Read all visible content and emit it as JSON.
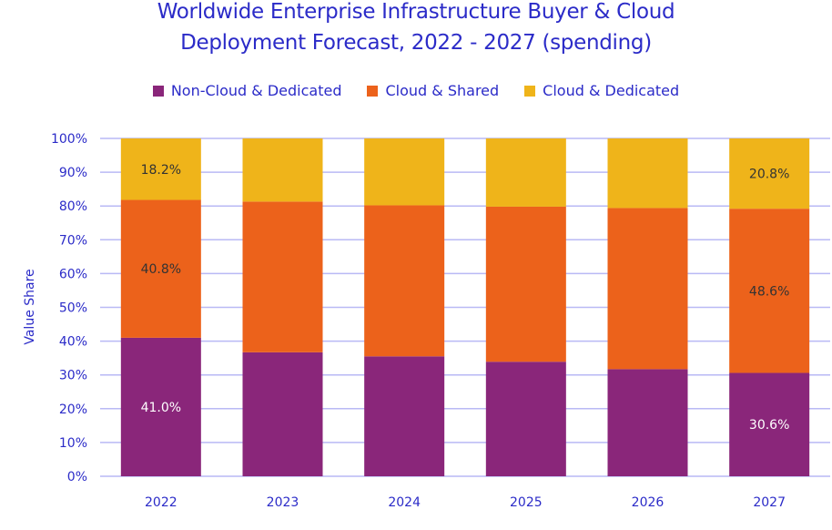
{
  "chart_data": {
    "type": "bar",
    "stacked": true,
    "title_line1": "Worldwide Enterprise Infrastructure Buyer & Cloud",
    "title_line2": "Deployment Forecast, 2022 - 2027 (spending)",
    "ylabel": "Value  Share",
    "xlabel": "",
    "ylim": [
      0,
      100
    ],
    "y_ticks": [
      "0%",
      "10%",
      "20%",
      "30%",
      "40%",
      "50%",
      "60%",
      "70%",
      "80%",
      "90%",
      "100%"
    ],
    "categories": [
      "2022",
      "2023",
      "2024",
      "2025",
      "2026",
      "2027"
    ],
    "grid": true,
    "legend_position": "top",
    "series": [
      {
        "name": "Non-Cloud & Dedicated",
        "color": "#8a267a",
        "values": [
          41.0,
          36.7,
          35.5,
          33.9,
          31.7,
          30.6
        ]
      },
      {
        "name": "Cloud & Shared",
        "color": "#ec621b",
        "values": [
          40.8,
          44.6,
          44.7,
          45.9,
          47.7,
          48.6
        ]
      },
      {
        "name": "Cloud & Dedicated",
        "color": "#efb41a",
        "values": [
          18.2,
          18.7,
          19.8,
          20.2,
          20.6,
          20.8
        ]
      }
    ],
    "data_labels": [
      {
        "series": 0,
        "category": "2022",
        "text": "41.0%",
        "color": "#ffffff"
      },
      {
        "series": 1,
        "category": "2022",
        "text": "40.8%",
        "color": "#333333"
      },
      {
        "series": 2,
        "category": "2022",
        "text": "18.2%",
        "color": "#333333"
      },
      {
        "series": 0,
        "category": "2027",
        "text": "30.6%",
        "color": "#ffffff"
      },
      {
        "series": 1,
        "category": "2027",
        "text": "48.6%",
        "color": "#333333"
      },
      {
        "series": 2,
        "category": "2027",
        "text": "20.8%",
        "color": "#333333"
      }
    ]
  }
}
